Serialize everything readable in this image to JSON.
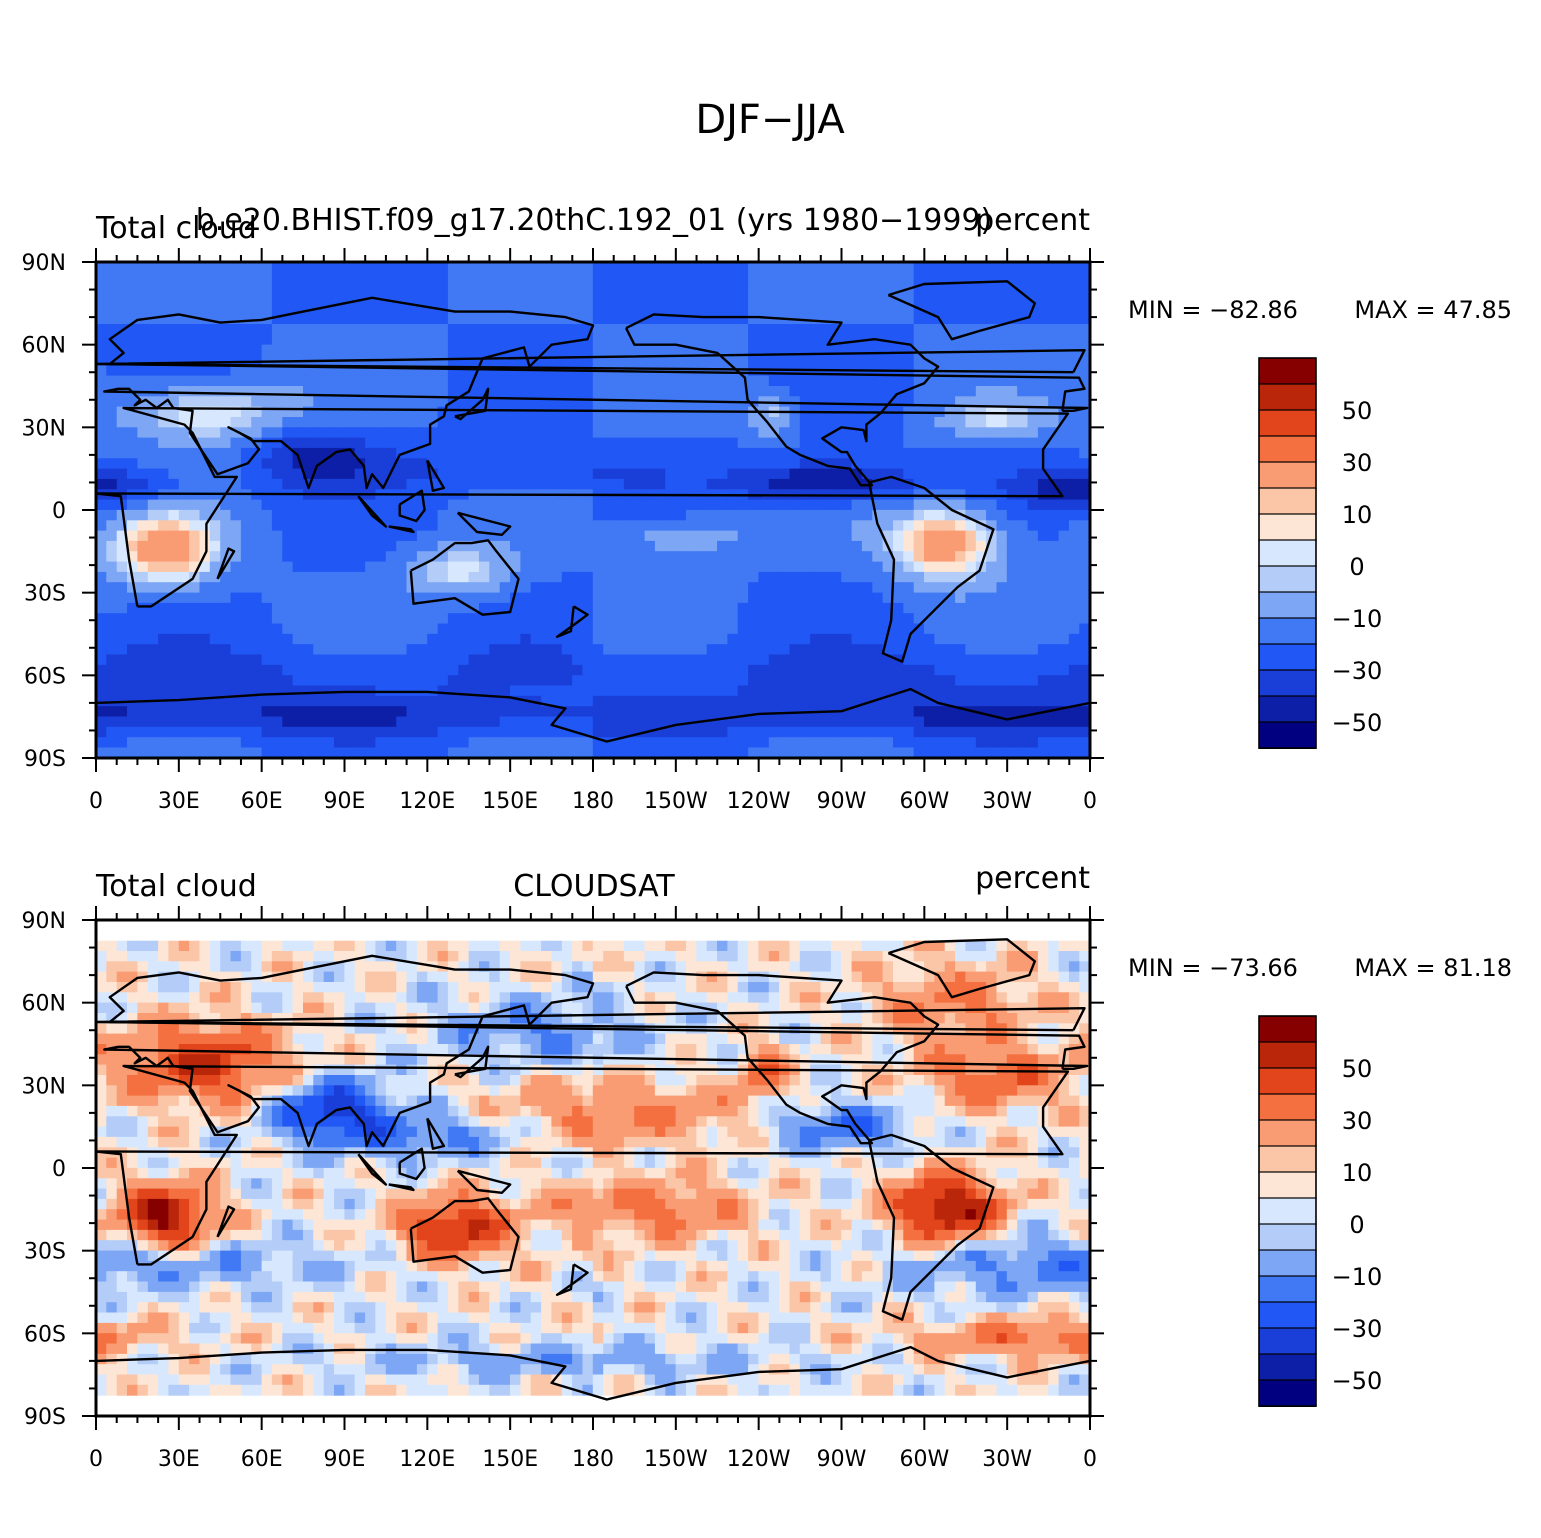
{
  "figure": {
    "title": "DJF−JJA"
  },
  "x_ticks": [
    "0",
    "30E",
    "60E",
    "90E",
    "120E",
    "150E",
    "180",
    "150W",
    "120W",
    "90W",
    "60W",
    "30W",
    "0"
  ],
  "y_ticks": [
    "90N",
    "60N",
    "30N",
    "0",
    "30S",
    "60S",
    "90S"
  ],
  "colorbar": {
    "levels": [
      -60,
      -50,
      -40,
      -30,
      -20,
      -10,
      -5,
      0,
      5,
      10,
      20,
      30,
      40,
      50,
      60
    ],
    "tick_labels": [
      "50",
      "30",
      "10",
      "0",
      "−10",
      "−30",
      "−50"
    ],
    "colors": [
      "#000080",
      "#0d1fa6",
      "#1a3fd9",
      "#2157f4",
      "#4178f4",
      "#7da6f5",
      "#b3cdf8",
      "#d7e8fe",
      "#fde6d5",
      "#fbc6a8",
      "#f99c73",
      "#f47040",
      "#e2441b",
      "#b9260a",
      "#860000"
    ]
  },
  "panels": [
    {
      "left_title": "Total cloud",
      "center_title": "b.e20.BHIST.f09_g17.20thC.192_01 (yrs 1980−1999)",
      "right_title": "percent",
      "min_label": "MIN = −82.86",
      "max_label": "MAX = 47.85",
      "field_style": "model",
      "coverage_lat": [
        -90,
        90
      ]
    },
    {
      "left_title": "Total cloud",
      "center_title": "CLOUDSAT",
      "right_title": "percent",
      "min_label": "MIN = −73.66",
      "max_label": "MAX = 81.18",
      "field_style": "obs",
      "coverage_lat": [
        -82,
        82
      ]
    }
  ]
}
